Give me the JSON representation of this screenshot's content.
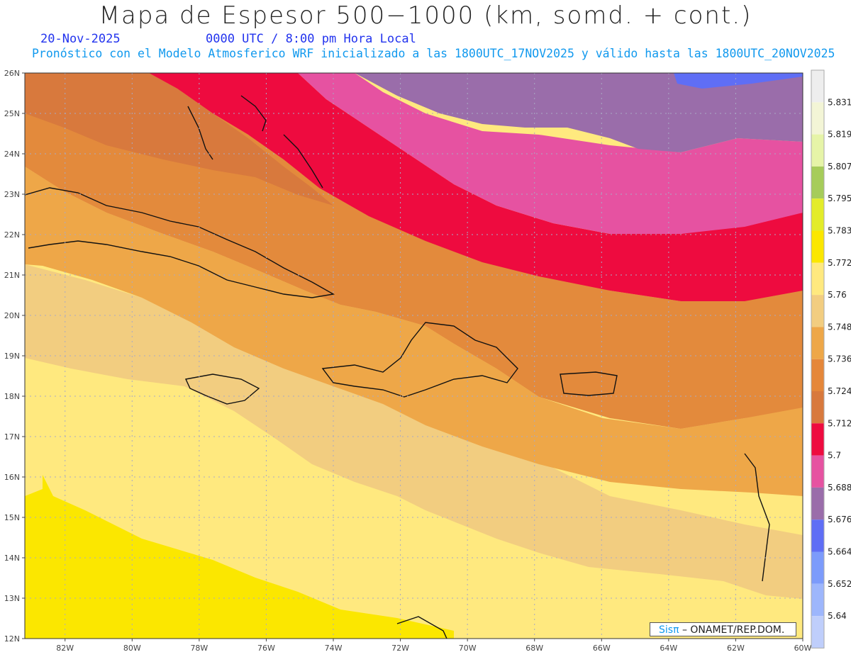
{
  "header": {
    "title": "Mapa de Espesor 500−1000 (km, somd. + cont.)",
    "date": "20-Nov-2025",
    "valid_time": "0000 UTC / 8:00 pm Hora Local",
    "forecast_info": "Pronóstico con el Modelo Atmosferico WRF inicializado a las 1800UTC_17NOV2025 y válido hasta las  1800UTC_20NOV2025"
  },
  "map": {
    "lat_labels": [
      "26N",
      "25N",
      "24N",
      "23N",
      "22N",
      "21N",
      "20N",
      "19N",
      "18N",
      "17N",
      "16N",
      "15N",
      "14N",
      "13N",
      "12N"
    ],
    "lon_labels": [
      "82W",
      "80W",
      "78W",
      "76W",
      "74W",
      "72W",
      "70W",
      "68W",
      "66W",
      "64W",
      "62W",
      "60W"
    ],
    "lat_range": [
      12,
      26
    ],
    "lon_range": [
      -83.2,
      -60
    ],
    "grid": true
  },
  "colorbar": {
    "levels": [
      "5.831",
      "5.819",
      "5.807",
      "5.795",
      "5.783",
      "5.772",
      "5.76",
      "5.748",
      "5.736",
      "5.724",
      "5.712",
      "5.7",
      "5.688",
      "5.676",
      "5.664",
      "5.652",
      "5.64"
    ],
    "colors": [
      "#eeeeee",
      "#f3f5d6",
      "#e6f4a8",
      "#a6cc5a",
      "#e3ec2a",
      "#fbe700",
      "#ffe97f",
      "#f2cd80",
      "#eea748",
      "#e5873a",
      "#d8793d",
      "#ee0b3f",
      "#e652a1",
      "#9a6daa",
      "#5f6ef5",
      "#7c9bfb",
      "#9db6fc",
      "#bfcefb"
    ]
  },
  "credit": {
    "sis": "Sisπ",
    "org": " – ONAMET/REP.DOM."
  }
}
